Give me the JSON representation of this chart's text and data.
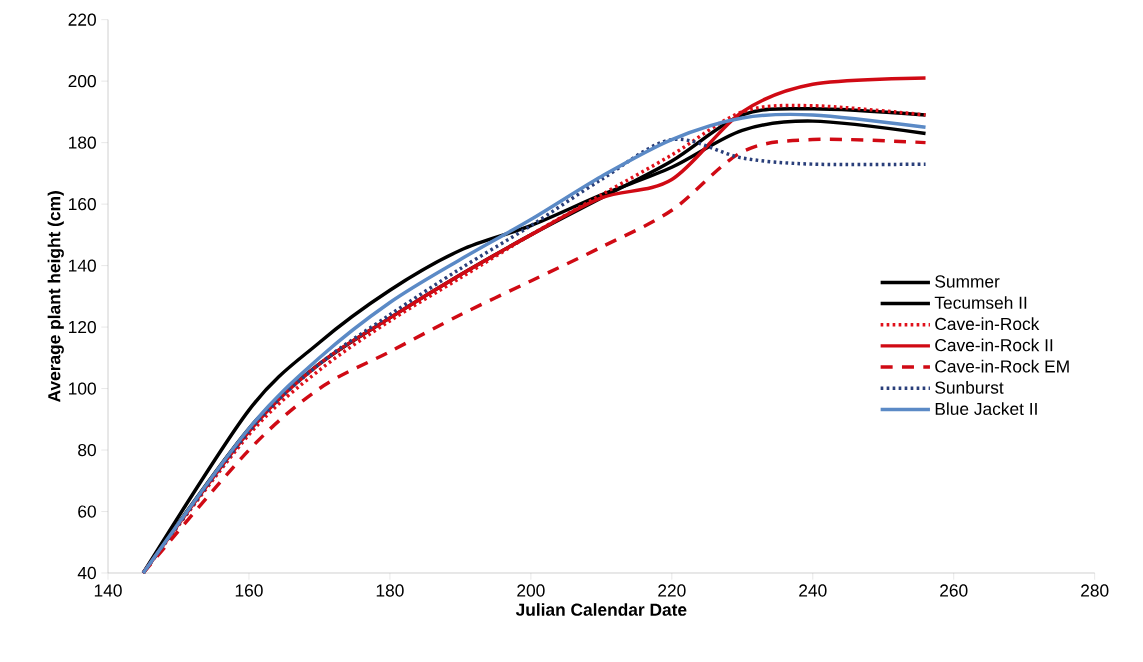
{
  "chart_data": {
    "type": "line",
    "xlabel": "Julian Calendar Date",
    "ylabel": "Average plant height (cm)",
    "xlim": [
      140,
      280
    ],
    "xticks": [
      140,
      160,
      180,
      200,
      220,
      240,
      260,
      280
    ],
    "ylim": [
      40,
      220
    ],
    "yticks": [
      40,
      60,
      80,
      100,
      120,
      140,
      160,
      180,
      200,
      220
    ],
    "grid": false,
    "legend": "right",
    "marker": "none",
    "x": [
      145,
      160,
      170,
      180,
      190,
      200,
      210,
      220,
      230,
      240,
      256
    ],
    "series": [
      {
        "name": "Summer",
        "color": "#000000",
        "line_style": "solid",
        "values": [
          40,
          93,
          115,
          132,
          145,
          153,
          163,
          172,
          184,
          187,
          183
        ]
      },
      {
        "name": "Tecumseh II",
        "color": "#000000",
        "line_style": "solid",
        "values": [
          40,
          87,
          108,
          123,
          137,
          150,
          162,
          174,
          189,
          191,
          189
        ]
      },
      {
        "name": "Cave-in-Rock",
        "color": "#e0101a",
        "line_style": "dotted",
        "values": [
          40,
          85,
          106,
          122,
          136,
          150,
          163,
          176,
          190,
          192,
          189
        ]
      },
      {
        "name": "Cave-in-Rock II",
        "color": "#d00a14",
        "line_style": "solid",
        "values": [
          40,
          86,
          108,
          123,
          137,
          150,
          162,
          168,
          190,
          199,
          201
        ]
      },
      {
        "name": "Cave-in-Rock EM",
        "color": "#d00a14",
        "line_style": "dashed",
        "values": [
          40,
          80,
          100,
          112,
          124,
          135,
          146,
          158,
          177,
          181,
          180
        ]
      },
      {
        "name": "Sunburst",
        "color": "#2a3f7a",
        "line_style": "dotted",
        "values": [
          40,
          86,
          108,
          124,
          139,
          153,
          168,
          181,
          175,
          173,
          173
        ]
      },
      {
        "name": "Blue Jacket II",
        "color": "#5b8ac6",
        "line_style": "solid",
        "values": [
          40,
          87,
          110,
          128,
          142,
          155,
          169,
          181,
          188,
          189,
          185
        ]
      }
    ]
  }
}
